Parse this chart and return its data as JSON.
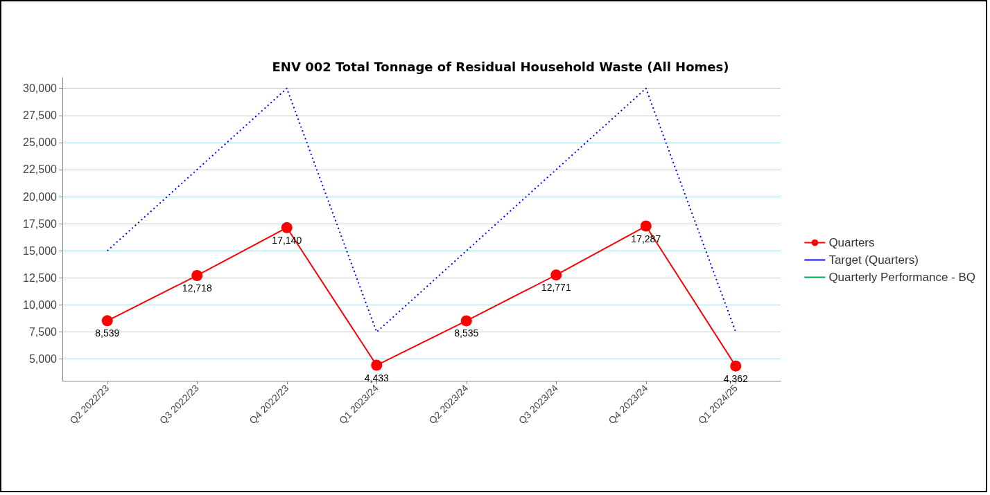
{
  "chart_data": {
    "type": "line",
    "title": "ENV 002 Total Tonnage of Residual Household Waste (All Homes)",
    "categories": [
      "Q2 2022/23",
      "Q3 2022/23",
      "Q4 2022/23",
      "Q1 2023/24",
      "Q2 2023/24",
      "Q3 2023/24",
      "Q4 2023/24",
      "Q1 2024/25"
    ],
    "series": [
      {
        "name": "Quarters",
        "color": "#ff0000",
        "values": [
          8539,
          12718,
          17140,
          4433,
          8535,
          12771,
          17287,
          4362
        ],
        "value_labels": [
          "8,539",
          "12,718",
          "17,140",
          "4,433",
          "8,535",
          "12,771",
          "17,287",
          "4,362"
        ],
        "marker": "circle",
        "line_style": "solid"
      },
      {
        "name": "Target (Quarters)",
        "color": "#0000ff",
        "values": [
          15000,
          22500,
          30000,
          7500,
          15000,
          22500,
          30000,
          7500
        ],
        "marker": "none",
        "line_style": "dotted"
      },
      {
        "name": "Quarterly Performance - BQ",
        "color": "#00a651",
        "values": [
          null,
          null,
          null,
          null,
          null,
          null,
          null,
          null
        ],
        "marker": "none",
        "line_style": "solid"
      }
    ],
    "ylim": [
      3000,
      31000
    ],
    "yticks": [
      {
        "value": 5000,
        "label": "5,000"
      },
      {
        "value": 7500,
        "label": "7,500"
      },
      {
        "value": 10000,
        "label": "10,000"
      },
      {
        "value": 12500,
        "label": "12,500"
      },
      {
        "value": 15000,
        "label": "15,000"
      },
      {
        "value": 17500,
        "label": "17,500"
      },
      {
        "value": 20000,
        "label": "20,000"
      },
      {
        "value": 22500,
        "label": "22,500"
      },
      {
        "value": 25000,
        "label": "25,000"
      },
      {
        "value": 27500,
        "label": "27,500"
      },
      {
        "value": 30000,
        "label": "30,000"
      }
    ],
    "grid": "y",
    "legend": "right"
  }
}
